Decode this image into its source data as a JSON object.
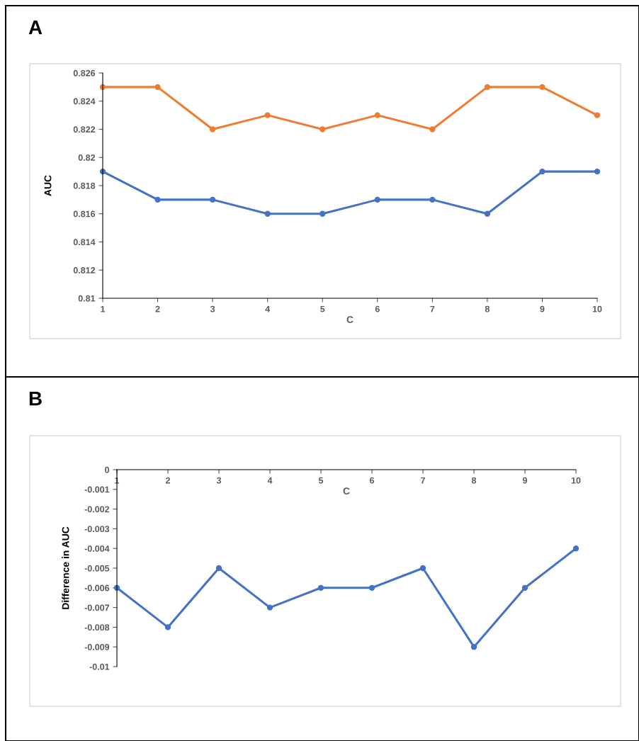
{
  "chart_data": [
    {
      "type": "line",
      "title": "A",
      "xlabel": "C",
      "ylabel": "AUC",
      "x": [
        1,
        2,
        3,
        4,
        5,
        6,
        7,
        8,
        9,
        10
      ],
      "series": [
        {
          "color": "#ed7d31",
          "values": [
            0.825,
            0.825,
            0.822,
            0.823,
            0.822,
            0.823,
            0.822,
            0.825,
            0.825,
            0.823
          ]
        },
        {
          "color": "#4472c4",
          "values": [
            0.819,
            0.817,
            0.817,
            0.816,
            0.816,
            0.817,
            0.817,
            0.816,
            0.819,
            0.819
          ]
        }
      ],
      "xlim": [
        1,
        10
      ],
      "xticks": [
        1,
        2,
        3,
        4,
        5,
        6,
        7,
        8,
        9,
        10
      ],
      "ylim": [
        0.81,
        0.826
      ],
      "yticks": [
        0.81,
        0.812,
        0.814,
        0.816,
        0.818,
        0.82,
        0.822,
        0.824,
        0.826
      ],
      "marker": "circle",
      "grid": false,
      "legend": false
    },
    {
      "type": "line",
      "title": "B",
      "xlabel": "C",
      "ylabel": "Difference in AUC",
      "x": [
        1,
        2,
        3,
        4,
        5,
        6,
        7,
        8,
        9,
        10
      ],
      "series": [
        {
          "color": "#4472c4",
          "values": [
            -0.006,
            -0.008,
            -0.005,
            -0.007,
            -0.006,
            -0.006,
            -0.005,
            -0.009,
            -0.006,
            -0.004
          ]
        }
      ],
      "xlim": [
        1,
        10
      ],
      "xticks": [
        1,
        2,
        3,
        4,
        5,
        6,
        7,
        8,
        9,
        10
      ],
      "ylim": [
        -0.01,
        0
      ],
      "yticks": [
        0,
        -0.001,
        -0.002,
        -0.003,
        -0.004,
        -0.005,
        -0.006,
        -0.007,
        -0.008,
        -0.009,
        -0.01
      ],
      "marker": "circle",
      "grid": false,
      "legend": false
    }
  ]
}
